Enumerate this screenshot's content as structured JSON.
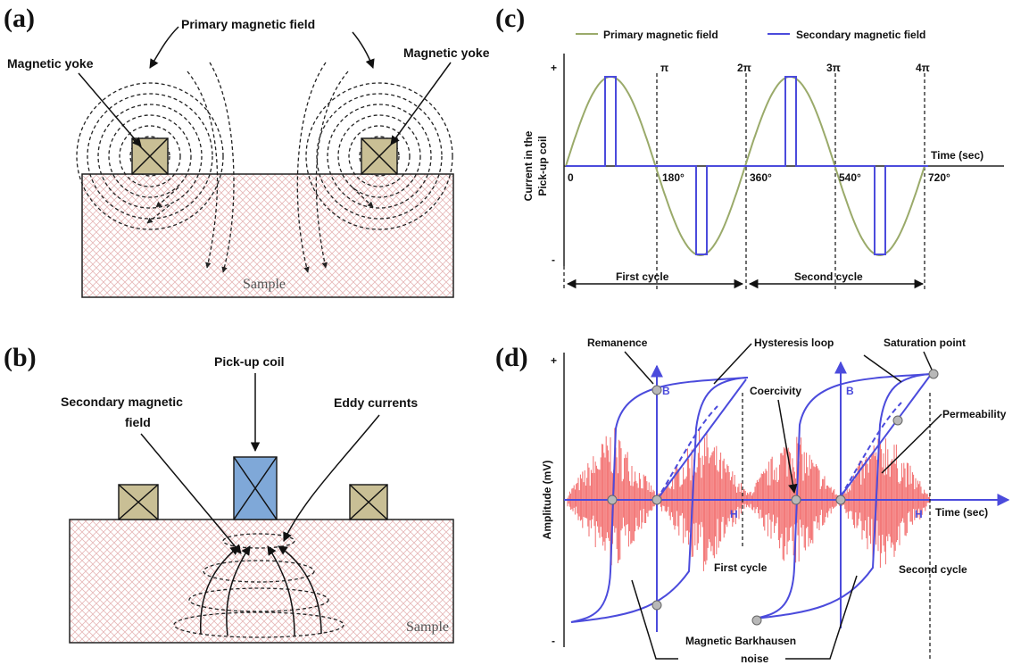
{
  "panel_a": {
    "label": "(a)",
    "primary_field": "Primary magnetic field",
    "yoke_left": "Magnetic yoke",
    "yoke_right": "Magnetic yoke",
    "sample": "Sample"
  },
  "panel_b": {
    "label": "(b)",
    "pickup_coil": "Pick-up coil",
    "secondary_field": [
      "Secondary magnetic",
      "field"
    ],
    "eddy_currents": "Eddy currents",
    "sample": "Sample"
  },
  "panel_c": {
    "label": "(c)",
    "legend": [
      "Primary magnetic field",
      "Secondary magnetic field"
    ],
    "y_axis_label": [
      "Current in the",
      "Pick-up coil"
    ],
    "y_plus": "+",
    "y_minus": "-",
    "x_axis_label": "Time (sec)",
    "pi_marks": [
      "π",
      "2π",
      "3π",
      "4π"
    ],
    "degree_marks": [
      "0",
      "180°",
      "360°",
      "540°",
      "720°"
    ],
    "cycles": [
      "First cycle",
      "Second cycle"
    ]
  },
  "panel_d": {
    "label": "(d)",
    "remanence": "Remanence",
    "hysteresis_loop": "Hysteresis loop",
    "saturation_point": "Saturation point",
    "b_labels": [
      "B",
      "B"
    ],
    "coercivity": "Coercivity",
    "permeability": "Permeability",
    "y_axis_label": "Amplitude (mV)",
    "y_plus": "+",
    "y_minus": "-",
    "h_labels": [
      "H",
      "H"
    ],
    "x_axis_label": "Time (sec)",
    "cycles": [
      "First cycle",
      "Second cycle"
    ],
    "barkhausen": [
      "Magnetic Barkhausen",
      "noise"
    ]
  }
}
